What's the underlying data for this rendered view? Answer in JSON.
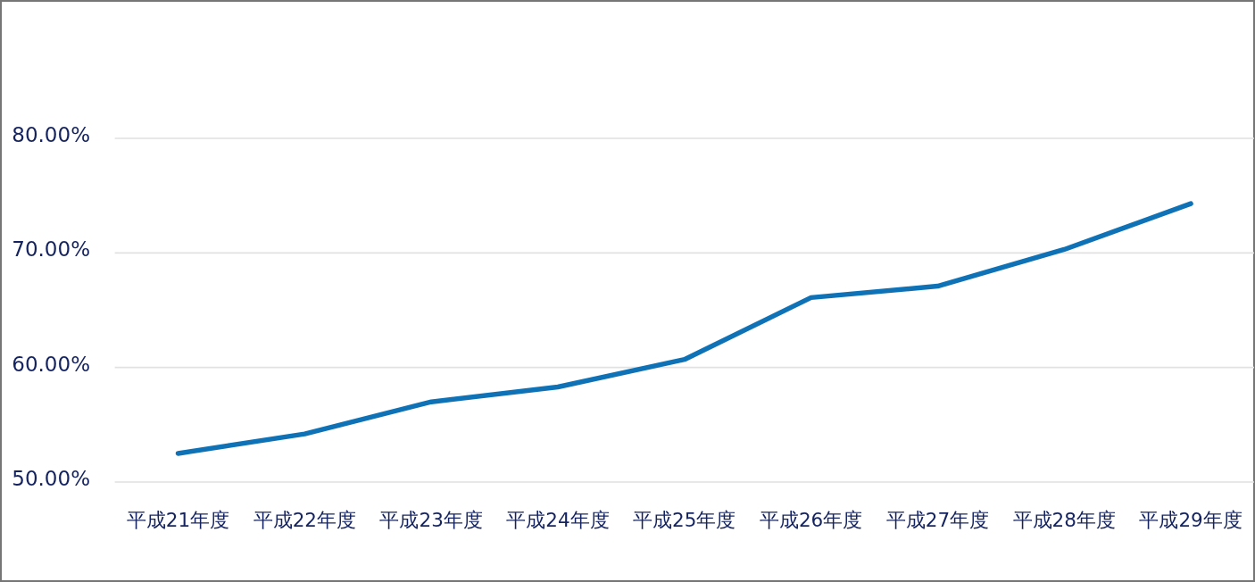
{
  "chart_data": {
    "type": "line",
    "categories": [
      "平成21年度",
      "平成22年度",
      "平成23年度",
      "平成24年度",
      "平成25年度",
      "平成26年度",
      "平成27年度",
      "平成28年度",
      "平成29年度"
    ],
    "series": [
      {
        "color": "#0f72b6",
        "values": [
          52.5,
          54.2,
          57.0,
          58.3,
          60.7,
          66.1,
          67.1,
          70.3,
          74.3
        ]
      }
    ],
    "ylim": [
      50,
      80
    ],
    "yticks": [
      {
        "value": 50,
        "label": "50.00%"
      },
      {
        "value": 60,
        "label": "60.00%"
      },
      {
        "value": 70,
        "label": "70.00%"
      },
      {
        "value": 80,
        "label": "80.00%"
      }
    ],
    "grid": "y",
    "line_style": "solid"
  }
}
